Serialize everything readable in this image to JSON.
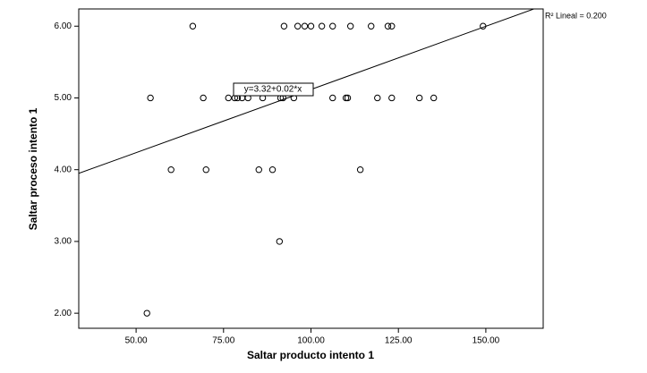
{
  "chart_data": {
    "type": "scatter",
    "x_label": "Saltar producto intento 1",
    "y_label": "Saltar proceso intento 1",
    "fit_label": "y=3.32+0.02*x",
    "r2_label": "R² Lineal = 0.200",
    "color": "#000000",
    "x": [
      66.2,
      92.3,
      96.2,
      98.2,
      100,
      103.1,
      106.2,
      111.3,
      117.2,
      122,
      123.1,
      149.2,
      54.1,
      69.2,
      76.4,
      78.2,
      79,
      80.3,
      82,
      86.2,
      91.3,
      92,
      95.1,
      106.2,
      110,
      110.5,
      119,
      123.1,
      131,
      135.1,
      60,
      70,
      85.1,
      89,
      114.1,
      91,
      53.1
    ],
    "values": [
      6,
      6,
      6,
      6,
      6,
      6,
      6,
      6,
      6,
      6,
      6,
      6,
      5,
      5,
      5,
      5,
      5,
      5,
      5,
      5,
      5,
      5,
      5,
      5,
      5,
      5,
      5,
      5,
      5,
      5,
      4,
      4,
      4,
      4,
      4,
      3,
      2
    ],
    "xlim": [
      33.6,
      166.4
    ],
    "ylim": [
      1.79,
      6.24
    ],
    "xticks": [
      {
        "value": 50,
        "label": "50.00"
      },
      {
        "value": 75,
        "label": "75.00"
      },
      {
        "value": 100,
        "label": "100.00"
      },
      {
        "value": 125,
        "label": "125.00"
      },
      {
        "value": 150,
        "label": "150.00"
      }
    ],
    "yticks": [
      {
        "value": 2,
        "label": "2.00"
      },
      {
        "value": 3,
        "label": "3.00"
      },
      {
        "value": 4,
        "label": "4.00"
      },
      {
        "value": 5,
        "label": "5.00"
      },
      {
        "value": 6,
        "label": "6.00"
      }
    ]
  }
}
